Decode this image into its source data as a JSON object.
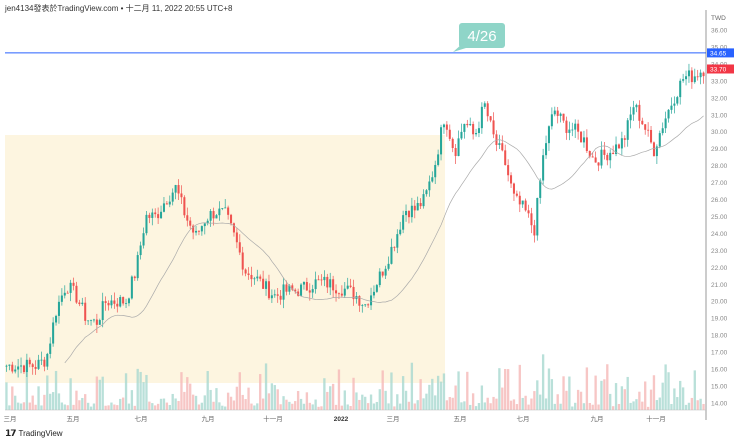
{
  "header": {
    "title": "jen4134發表於TradingView.com • 十二月 11, 2022 20:55 UTC+8"
  },
  "watermark": {
    "text": "TradingView",
    "logo": "TV"
  },
  "annotation": {
    "label": "4/26",
    "color": "#8fd5c8"
  },
  "chart_data": {
    "type": "candlestick",
    "currency": "TWD",
    "ylim": [
      13.5,
      36.3
    ],
    "y_ticks": [
      "36.00",
      "35.00",
      "34.00",
      "33.00",
      "32.00",
      "31.00",
      "30.00",
      "29.00",
      "28.00",
      "27.00",
      "26.00",
      "25.00",
      "24.00",
      "23.00",
      "22.00",
      "21.00",
      "20.00",
      "19.00",
      "18.00",
      "17.00",
      "16.00",
      "15.00",
      "14.00"
    ],
    "x_ticks": [
      "三月",
      "五月",
      "七月",
      "九月",
      "十一月",
      "2022",
      "三月",
      "五月",
      "七月",
      "九月",
      "十一月"
    ],
    "close_samples": [
      16.2,
      16.2,
      16.2,
      16.2,
      16.6,
      19.5,
      21,
      20.3,
      19,
      18.7,
      20,
      20,
      20,
      21.8,
      25,
      25,
      26,
      26.7,
      25,
      23.8,
      24.9,
      25.3,
      25.1,
      23.6,
      21.8,
      21.4,
      20.8,
      20.3,
      20.6,
      20.6,
      20.8,
      21.1,
      21.1,
      20.9,
      20.7,
      20.4,
      19.8,
      20.9,
      22.1,
      23.6,
      25.4,
      25.4,
      26,
      28,
      31,
      28.8,
      30.6,
      29.7,
      31.6,
      29.5,
      28.3,
      26,
      25.4,
      24.2,
      29,
      31.3,
      30.4,
      30.1,
      29.5,
      28.3,
      28.6,
      29,
      29.5,
      31.6,
      30.4,
      28.9,
      30.6,
      32,
      33.2,
      33.3,
      33.7
    ],
    "horizontal_line": {
      "value": "34.65",
      "color": "#2962ff"
    },
    "last_price": {
      "value": "33.70",
      "color": "#f23645"
    },
    "up_color": "#26a69a",
    "down_color": "#ef5350",
    "highlight_color": "#fdf5e0",
    "moving_average": true,
    "grid": false
  }
}
